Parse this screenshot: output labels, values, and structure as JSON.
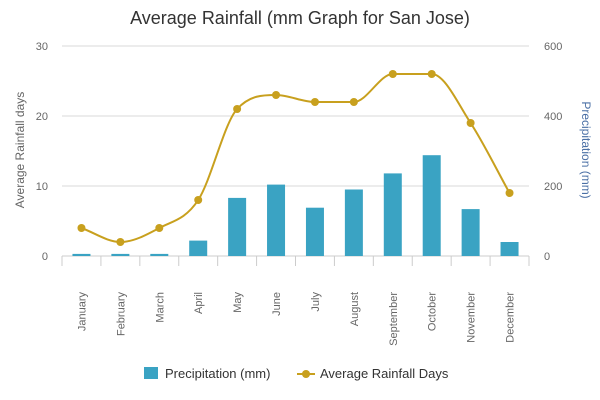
{
  "chart_data": {
    "type": "bar",
    "title": "Average Rainfall (mm Graph for San Jose)",
    "categories": [
      "January",
      "February",
      "March",
      "April",
      "May",
      "June",
      "July",
      "August",
      "September",
      "October",
      "November",
      "December"
    ],
    "left_axis": {
      "label": "Average Rainfall days",
      "range": [
        0,
        30
      ],
      "ticks": [
        "0",
        "10",
        "20",
        "30"
      ],
      "color": "#666666"
    },
    "right_axis": {
      "label": "Precipitation (mm)",
      "range": [
        0,
        600
      ],
      "ticks": [
        "0",
        "200",
        "400",
        "600"
      ],
      "color": "#4a6fa5"
    },
    "series": [
      {
        "name": "Precipitation (mm)",
        "type": "bar",
        "axis": "right",
        "color": "#3aa3c3",
        "values": [
          6,
          6,
          6,
          44,
          166,
          204,
          138,
          190,
          236,
          288,
          134,
          40
        ]
      },
      {
        "name": "Average Rainfall Days",
        "type": "line",
        "axis": "left",
        "color": "#c8a01e",
        "values": [
          4,
          2,
          4,
          8,
          21,
          23,
          22,
          22,
          26,
          26,
          19,
          9
        ]
      }
    ],
    "grid": true,
    "legend_position": "bottom"
  }
}
